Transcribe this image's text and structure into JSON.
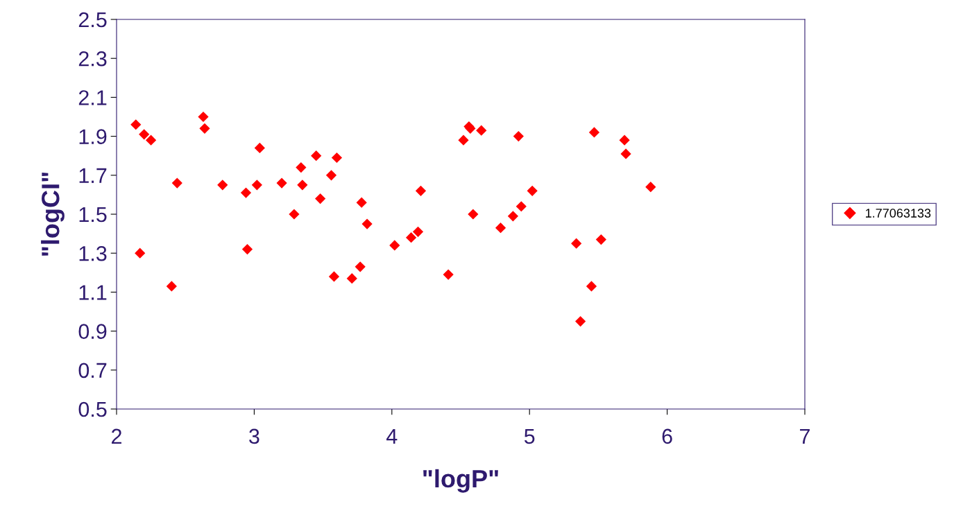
{
  "chart_data": {
    "type": "scatter",
    "xlabel": "\"logP\"",
    "ylabel": "\"logCI\"",
    "xlim": [
      2,
      7
    ],
    "xticks": [
      2,
      3,
      4,
      5,
      6,
      7
    ],
    "ylim": [
      0.5,
      2.5
    ],
    "yticks": [
      {
        "value": 0.5,
        "label": "0.5"
      },
      {
        "value": 0.7,
        "label": "0.7"
      },
      {
        "value": 0.9,
        "label": "0.9"
      },
      {
        "value": 1.1,
        "label": "1.1"
      },
      {
        "value": 1.3,
        "label": "1.3"
      },
      {
        "value": 1.5,
        "label": "1.5"
      },
      {
        "value": 1.7,
        "label": "1.7"
      },
      {
        "value": 1.9,
        "label": "1.9"
      },
      {
        "value": 2.1,
        "label": "2.1"
      },
      {
        "value": 2.3,
        "label": "2.3"
      },
      {
        "value": 2.5,
        "label": "2.5"
      }
    ],
    "grid": false,
    "legend": "right",
    "marker": "diamond",
    "series": [
      {
        "name": "1.77063133",
        "color": "#ff0000",
        "x": [
          2.14,
          2.2,
          2.25,
          2.17,
          2.4,
          2.44,
          2.63,
          2.64,
          2.77,
          2.94,
          2.95,
          3.02,
          3.04,
          3.2,
          3.29,
          3.34,
          3.35,
          3.45,
          3.48,
          3.56,
          3.6,
          3.58,
          3.71,
          3.77,
          3.78,
          3.82,
          4.02,
          4.14,
          4.19,
          4.21,
          4.41,
          4.52,
          4.56,
          4.57,
          4.65,
          4.59,
          4.79,
          4.88,
          4.92,
          4.94,
          5.02,
          5.34,
          5.37,
          5.45,
          5.47,
          5.52,
          5.69,
          5.7,
          5.88
        ],
        "values": [
          1.96,
          1.91,
          1.88,
          1.3,
          1.13,
          1.66,
          2.0,
          1.94,
          1.65,
          1.61,
          1.32,
          1.65,
          1.84,
          1.66,
          1.5,
          1.74,
          1.65,
          1.8,
          1.58,
          1.7,
          1.79,
          1.18,
          1.17,
          1.23,
          1.56,
          1.45,
          1.34,
          1.38,
          1.41,
          1.62,
          1.19,
          1.88,
          1.95,
          1.94,
          1.93,
          1.5,
          1.43,
          1.49,
          1.9,
          1.54,
          1.62,
          1.35,
          0.95,
          1.13,
          1.92,
          1.37,
          1.88,
          1.81,
          1.64
        ]
      }
    ]
  }
}
